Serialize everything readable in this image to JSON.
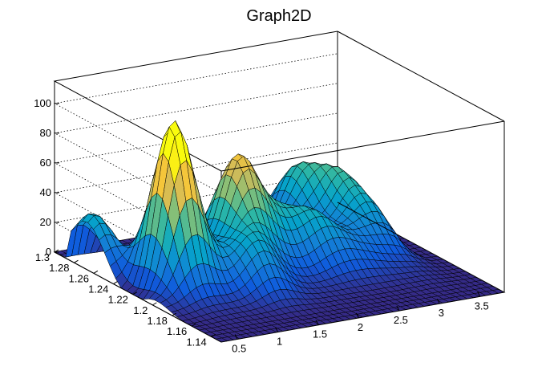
{
  "chart_data": {
    "type": "surface",
    "title": "Graph2D",
    "xlabel": "",
    "ylabel": "",
    "zlabel": "",
    "x_range": [
      0.3,
      3.8
    ],
    "y_range": [
      1.13,
      1.3
    ],
    "z_range": [
      0,
      115
    ],
    "x_ticks": [
      "0.5",
      "1",
      "1.5",
      "2",
      "2.5",
      "3",
      "3.5"
    ],
    "y_ticks": [
      "1.3",
      "1.28",
      "1.26",
      "1.24",
      "1.22",
      "1.2",
      "1.18",
      "1.16",
      "1.14"
    ],
    "z_ticks": [
      "0",
      "20",
      "40",
      "60",
      "80",
      "100"
    ],
    "grid": true,
    "palette": "kBird",
    "peaks": [
      {
        "x": 0.8,
        "y": 1.22,
        "z": 85
      },
      {
        "x": 1.7,
        "y": 1.23,
        "z": 60
      },
      {
        "x": 0.4,
        "y": 1.27,
        "z": 35
      },
      {
        "x": 2.1,
        "y": 1.25,
        "z": 35
      },
      {
        "x": 2.9,
        "y": 1.27,
        "z": 38
      },
      {
        "x": 3.2,
        "y": 1.25,
        "z": 42
      },
      {
        "x": 2.5,
        "y": 1.22,
        "z": 20
      },
      {
        "x": 1.5,
        "y": 1.19,
        "z": 18
      }
    ]
  }
}
